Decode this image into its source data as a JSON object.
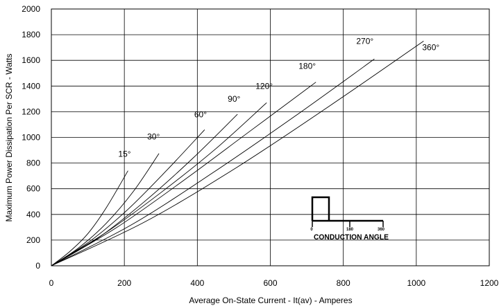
{
  "chart_data": {
    "type": "line",
    "title": "",
    "xlabel": "Average On-State Current - It(av) - Amperes",
    "ylabel": "Maximum Power Dissipation Per SCR - Watts",
    "xlim": [
      0,
      1200
    ],
    "ylim": [
      0,
      2000
    ],
    "x_ticks": [
      0,
      200,
      400,
      600,
      800,
      1000,
      1200
    ],
    "y_ticks": [
      0,
      200,
      400,
      600,
      800,
      1000,
      1200,
      1400,
      1600,
      1800,
      2000
    ],
    "grid": true,
    "series": [
      {
        "name": "15°",
        "points": [
          [
            0,
            0
          ],
          [
            50,
            110
          ],
          [
            100,
            250
          ],
          [
            150,
            450
          ],
          [
            210,
            740
          ]
        ]
      },
      {
        "name": "30°",
        "points": [
          [
            0,
            0
          ],
          [
            75,
            140
          ],
          [
            150,
            330
          ],
          [
            225,
            580
          ],
          [
            295,
            875
          ]
        ]
      },
      {
        "name": "60°",
        "points": [
          [
            0,
            0
          ],
          [
            105,
            190
          ],
          [
            210,
            440
          ],
          [
            315,
            740
          ],
          [
            420,
            1060
          ]
        ]
      },
      {
        "name": "90°",
        "points": [
          [
            0,
            0
          ],
          [
            125,
            210
          ],
          [
            255,
            500
          ],
          [
            385,
            830
          ],
          [
            510,
            1180
          ]
        ]
      },
      {
        "name": "120°",
        "points": [
          [
            0,
            0
          ],
          [
            150,
            260
          ],
          [
            300,
            570
          ],
          [
            450,
            910
          ],
          [
            590,
            1270
          ]
        ]
      },
      {
        "name": "180°",
        "points": [
          [
            0,
            0
          ],
          [
            180,
            300
          ],
          [
            360,
            660
          ],
          [
            545,
            1050
          ],
          [
            725,
            1430
          ]
        ]
      },
      {
        "name": "270°",
        "points": [
          [
            0,
            0
          ],
          [
            220,
            320
          ],
          [
            440,
            720
          ],
          [
            665,
            1160
          ],
          [
            885,
            1610
          ]
        ]
      },
      {
        "name": "360°",
        "points": [
          [
            0,
            0
          ],
          [
            255,
            340
          ],
          [
            510,
            770
          ],
          [
            765,
            1250
          ],
          [
            1020,
            1750
          ]
        ]
      }
    ],
    "annotations": {
      "inset_label": "CONDUCTION ANGLE",
      "inset_ticks": [
        "0",
        "180",
        "360"
      ]
    }
  }
}
